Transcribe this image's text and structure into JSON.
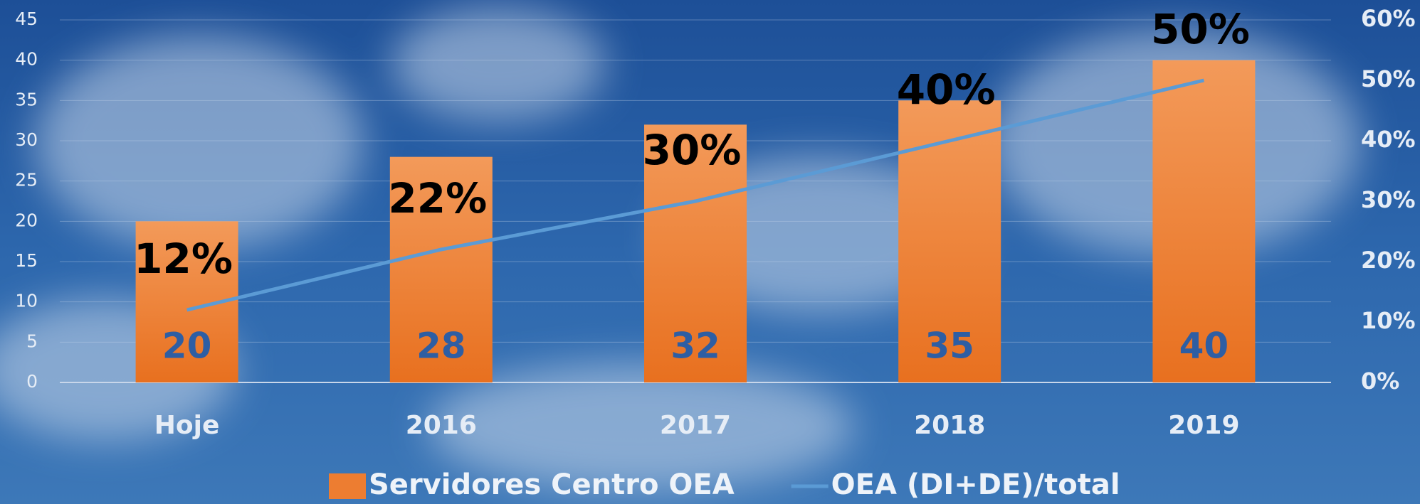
{
  "chart_data": {
    "type": "bar-line",
    "categories": [
      "Hoje",
      "2016",
      "2017",
      "2018",
      "2019"
    ],
    "series": [
      {
        "name": "Servidores Centro OEA",
        "type": "bar",
        "color": "#ed7d31",
        "values": [
          20,
          28,
          32,
          35,
          40
        ]
      },
      {
        "name": "OEA (DI+DE)/total",
        "type": "line",
        "axis": "y2",
        "color": "#5b9bd5",
        "values": [
          12,
          22,
          30,
          40,
          50
        ],
        "value_labels": [
          "12%",
          "22%",
          "30%",
          "40%",
          "50%"
        ]
      }
    ],
    "ylim": [
      0,
      45
    ],
    "yticks": [
      0,
      5,
      10,
      15,
      20,
      25,
      30,
      35,
      40,
      45
    ],
    "y2lim": [
      0,
      60
    ],
    "y2ticks": [
      {
        "value": 0,
        "label": "0%"
      },
      {
        "value": 10,
        "label": "10%"
      },
      {
        "value": 20,
        "label": "20%"
      },
      {
        "value": 30,
        "label": "30%"
      },
      {
        "value": 40,
        "label": "40%"
      },
      {
        "value": 50,
        "label": "50%"
      },
      {
        "value": 60,
        "label": "60%"
      }
    ],
    "grid": true,
    "legend": "bottom"
  }
}
